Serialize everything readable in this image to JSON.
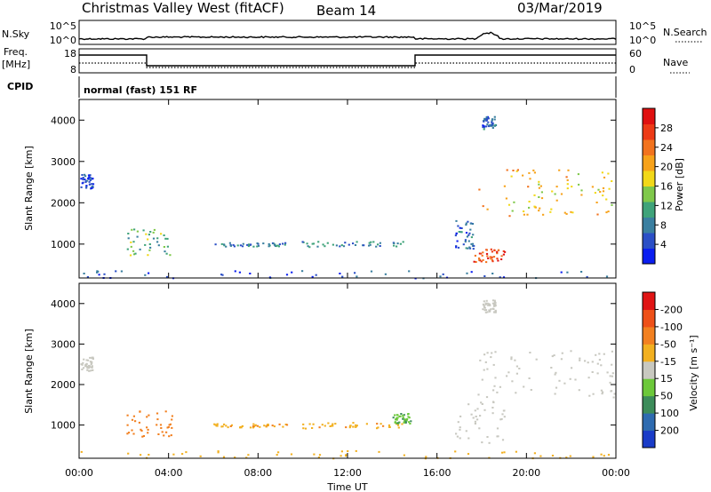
{
  "header": {
    "station": "Christmas Valley West (fitACF)",
    "beam": "Beam 14",
    "date": "03/Mar/2019"
  },
  "strip_panels": {
    "nsky_label": "N.Sky",
    "nsky_ticks": [
      "10^5",
      "10^0"
    ],
    "nsearch_label": "N.Search",
    "nsearch_ticks": [
      "10^5",
      "10^0"
    ],
    "freq_label_1": "Freq.",
    "freq_label_2": "[MHz]",
    "freq_ticks": [
      "18",
      "8"
    ],
    "nave_label": "Nave",
    "nave_ticks": [
      "60",
      "0"
    ],
    "cpid_label": "CPID",
    "cpid_text": "normal (fast) 151 RF"
  },
  "chart_data": [
    {
      "type": "heatmap",
      "name": "Power",
      "ylabel": "Slant Range [km]",
      "ylim": [
        180,
        4500
      ],
      "yticks": [
        1000,
        2000,
        3000,
        4000
      ],
      "xlim_hours": [
        0,
        24
      ],
      "colorbar_label": "Power [dB]",
      "colorbar_ticks": [
        "4",
        "8",
        "12",
        "16",
        "20",
        "24",
        "28"
      ],
      "colorbar_colors": [
        "#0a1ef0",
        "#2b4fc6",
        "#3a7fa0",
        "#3fa37a",
        "#7fc84a",
        "#f2d818",
        "#f7a21a",
        "#f2731e",
        "#ed3a16",
        "#e01010"
      ],
      "echo_regions": [
        {
          "t": [
            2.1,
            4.2
          ],
          "r": [
            720,
            1380
          ],
          "level": 14
        },
        {
          "t": [
            6.0,
            9.3
          ],
          "r": [
            960,
            1050
          ],
          "level": 9
        },
        {
          "t": [
            9.9,
            14.5
          ],
          "r": [
            930,
            1080
          ],
          "level": 10
        },
        {
          "t": [
            16.8,
            17.7
          ],
          "r": [
            900,
            1600
          ],
          "level": 8
        },
        {
          "t": [
            17.6,
            19.0
          ],
          "r": [
            580,
            900
          ],
          "level": 27
        },
        {
          "t": [
            17.8,
            24.0
          ],
          "r": [
            1700,
            2850
          ],
          "level": 20
        },
        {
          "t": [
            0.0,
            24.0
          ],
          "r": [
            190,
            380
          ],
          "level": 7
        },
        {
          "t": [
            0.05,
            0.6
          ],
          "r": [
            2350,
            2700
          ],
          "level": 6
        },
        {
          "t": [
            18.0,
            18.6
          ],
          "r": [
            3800,
            4100
          ],
          "level": 8
        }
      ]
    },
    {
      "type": "heatmap",
      "name": "Velocity",
      "ylabel": "Slant Range [km]",
      "ylim": [
        180,
        4500
      ],
      "yticks": [
        1000,
        2000,
        3000,
        4000
      ],
      "xlim_hours": [
        0,
        24
      ],
      "xticks": [
        "00:00",
        "04:00",
        "08:00",
        "12:00",
        "16:00",
        "20:00",
        "00:00"
      ],
      "xlabel": "Time UT",
      "colorbar_label": "Velocity [m s⁻¹]",
      "colorbar_ticks": [
        "200",
        "100",
        "50",
        "15",
        "-15",
        "-50",
        "-100",
        "-200"
      ],
      "colorbar_colors": [
        "#1a3cc8",
        "#2e6bb0",
        "#3c8c5a",
        "#6cc83a",
        "#c8c8c0",
        "#f2b020",
        "#f28020",
        "#ee5018",
        "#e01414"
      ],
      "echo_regions": [
        {
          "t": [
            2.1,
            4.2
          ],
          "r": [
            720,
            1380
          ],
          "level": -60
        },
        {
          "t": [
            6.0,
            9.3
          ],
          "r": [
            960,
            1050
          ],
          "level": -30
        },
        {
          "t": [
            9.9,
            14.5
          ],
          "r": [
            930,
            1080
          ],
          "level": -30
        },
        {
          "t": [
            14.0,
            14.8
          ],
          "r": [
            1050,
            1300
          ],
          "level": 30
        },
        {
          "t": [
            16.8,
            19.0
          ],
          "r": [
            580,
            1600
          ],
          "level": 0
        },
        {
          "t": [
            17.8,
            24.0
          ],
          "r": [
            1700,
            2850
          ],
          "level": 0
        },
        {
          "t": [
            0.0,
            24.0
          ],
          "r": [
            190,
            380
          ],
          "level": -25
        },
        {
          "t": [
            0.05,
            0.6
          ],
          "r": [
            2350,
            2700
          ],
          "level": 0
        },
        {
          "t": [
            18.0,
            18.6
          ],
          "r": [
            3800,
            4100
          ],
          "level": 0
        }
      ]
    }
  ]
}
